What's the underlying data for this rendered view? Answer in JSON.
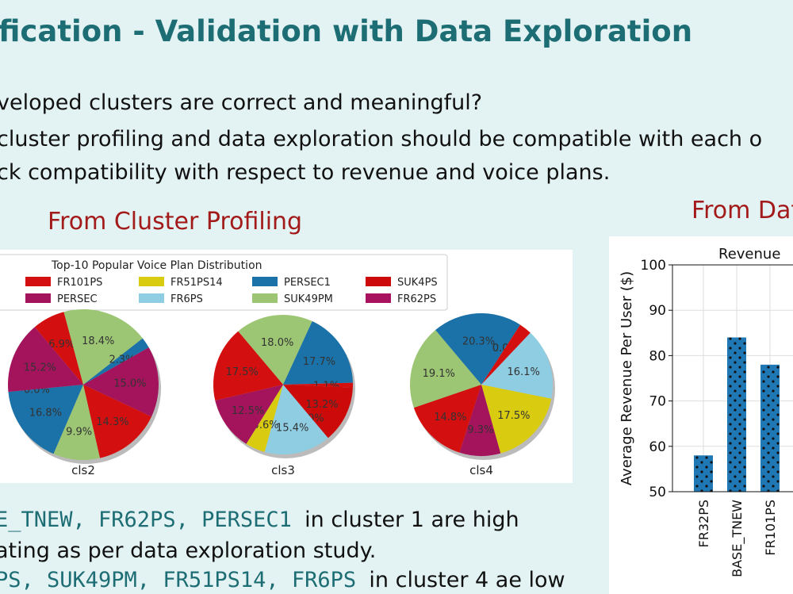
{
  "title": "fication - Validation with Data Exploration",
  "bullets": [
    "veloped clusters are correct and meaningful?",
    "cluster profiling and data exploration should be compatible with each o",
    "ck compatibility with respect to revenue and voice plans."
  ],
  "sections": [
    "From Cluster Profiling",
    "From Dat"
  ],
  "body": [
    {
      "code": "E_TNEW, FR62PS,  PERSEC1 ",
      "text": " in cluster 1 are high"
    },
    {
      "text": "ating as per data exploration study."
    },
    {
      "code": "PS, SUK49PM, FR51PS14, FR6PS ",
      "text": " in cluster 4 ae low"
    }
  ],
  "legend": {
    "title": "Top-10 Popular Voice Plan Distribution",
    "items": [
      {
        "name": "FR101PS",
        "color": "#d40f0f"
      },
      {
        "name": "FR51PS14",
        "color": "#d9cc10"
      },
      {
        "name": "PERSEC1",
        "color": "#1b72a8"
      },
      {
        "name": "SUK4PS",
        "color": "#cc0a0a"
      },
      {
        "name": "PERSEC",
        "color": "#a3145c"
      },
      {
        "name": "FR6PS",
        "color": "#8ecde2"
      },
      {
        "name": "SUK49PM",
        "color": "#9cc673"
      },
      {
        "name": "FR62PS",
        "color": "#a8125e"
      }
    ]
  },
  "chart_data": [
    {
      "type": "pie",
      "title": "cls2",
      "values": [
        6.9,
        18.4,
        2.3,
        15.0,
        14.3,
        9.9,
        16.8,
        0.0,
        15.2
      ],
      "value_labels": [
        "6.9%",
        "18.4%",
        "2.3%",
        "15.0%",
        "14.3%",
        "9.9%",
        "16.8%",
        "0.0%",
        "15.2%"
      ],
      "colors": [
        "#d40f0f",
        "#9cc673",
        "#1b72a8",
        "#a3145c",
        "#d40f0f",
        "#9cc673",
        "#1b72a8",
        "#8ecde2",
        "#a3145c"
      ]
    },
    {
      "type": "pie",
      "title": "cls3",
      "values": [
        18.0,
        17.7,
        1.1,
        13.2,
        0.0,
        15.4,
        4.6,
        12.5,
        17.5
      ],
      "value_labels": [
        "18.0%",
        "17.7%",
        "1.1%",
        "13.2%",
        "0.0%",
        "15.4%",
        "4.6%",
        "12.5%",
        "17.5%"
      ],
      "colors": [
        "#9cc673",
        "#1b72a8",
        "#d40f0f",
        "#cc0a0a",
        "#8ecde2",
        "#8ecde2",
        "#d9cc10",
        "#a3145c",
        "#d40f0f"
      ]
    },
    {
      "type": "pie",
      "title": "cls4",
      "values": [
        20.3,
        0.0,
        0.0,
        2.9,
        16.1,
        17.5,
        9.3,
        14.8,
        19.1
      ],
      "value_labels": [
        "20.3%",
        "0.0%",
        "0.0%",
        null,
        "16.1%",
        "17.5%",
        "9.3%",
        "14.8%",
        "19.1%"
      ],
      "colors": [
        "#1b72a8",
        "#a3145c",
        "#8ecde2",
        "#d40f0f",
        "#8ecde2",
        "#d9cc10",
        "#a3145c",
        "#d40f0f",
        "#9cc673"
      ]
    },
    {
      "type": "bar",
      "title": "Revenue",
      "ylabel": "Average Revenue Per User ($)",
      "categories": [
        "FR32PS",
        "BASE_TNEW",
        "FR101PS"
      ],
      "values": [
        58,
        84,
        78
      ],
      "color": "#1f77b4",
      "ylim": [
        50,
        100
      ],
      "yticks": [
        50,
        60,
        70,
        80,
        90,
        100
      ],
      "grid": true
    }
  ]
}
